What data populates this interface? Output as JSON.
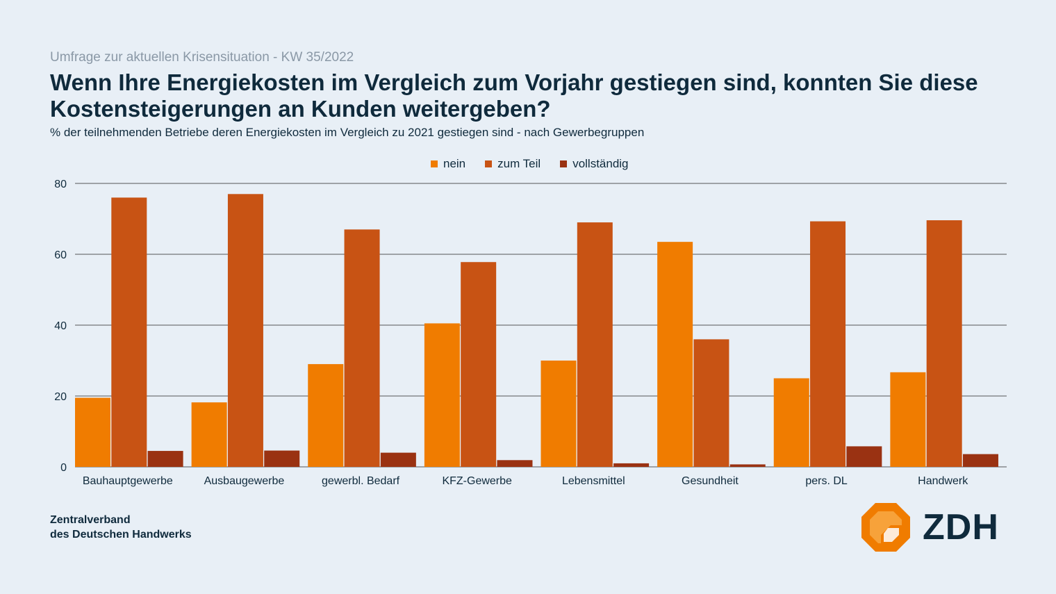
{
  "header": {
    "kicker": "Umfrage zur aktuellen Krisensituation - KW 35/2022",
    "title_line1": "Wenn Ihre Energiekosten im Vergleich zum Vorjahr gestiegen sind, konnten Sie diese",
    "title_line2": "Kostensteigerungen an Kunden weitergeben?",
    "subtitle": "% der teilnehmenden Betriebe deren Energiekosten im Vergleich zu 2021 gestiegen sind - nach Gewerbegruppen"
  },
  "colors": {
    "nein": "#f07c00",
    "zum_teil": "#c85314",
    "vollstaendig": "#9a3212",
    "grid": "#555555",
    "text": "#0f2a3c"
  },
  "chart_data": {
    "type": "bar",
    "title": "Wenn Ihre Energiekosten im Vergleich zum Vorjahr gestiegen sind, konnten Sie diese Kostensteigerungen an Kunden weitergeben?",
    "categories": [
      "Bauhauptgewerbe",
      "Ausbaugewerbe",
      "gewerbl. Bedarf",
      "KFZ-Gewerbe",
      "Lebensmittel",
      "Gesundheit",
      "pers. DL",
      "Handwerk"
    ],
    "series": [
      {
        "name": "nein",
        "values": [
          19.5,
          18.2,
          29.0,
          40.5,
          30.0,
          63.5,
          25.0,
          26.7
        ]
      },
      {
        "name": "zum Teil",
        "values": [
          76.0,
          77.0,
          67.0,
          57.8,
          69.0,
          36.0,
          69.3,
          69.6
        ]
      },
      {
        "name": "vollständig",
        "values": [
          4.5,
          4.6,
          4.0,
          1.9,
          1.0,
          0.7,
          5.8,
          3.6
        ]
      }
    ],
    "xlabel": "",
    "ylabel": "",
    "ylim": [
      0,
      80
    ],
    "yticks": [
      0,
      20,
      40,
      60,
      80
    ],
    "legend_position": "top-center",
    "grid": true
  },
  "footer": {
    "org_line1": "Zentralverband",
    "org_line2": "des Deutschen Handwerks",
    "logo_text": "ZDH"
  }
}
